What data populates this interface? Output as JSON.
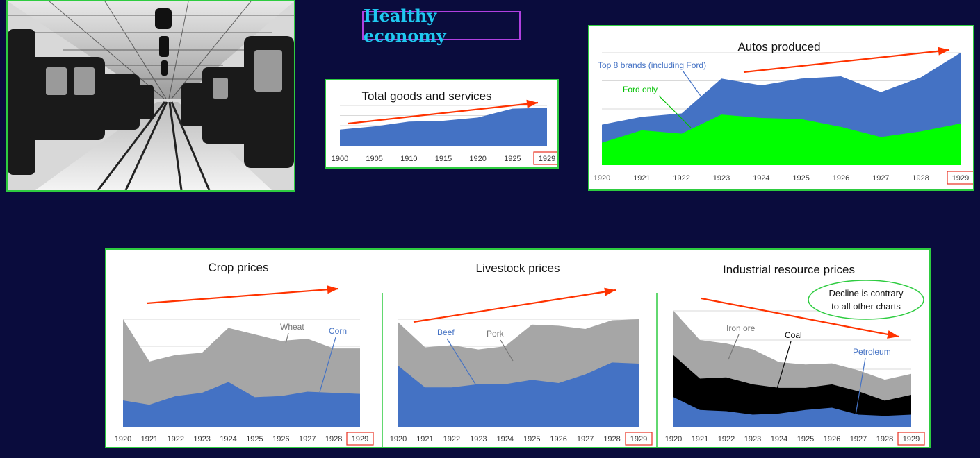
{
  "page": {
    "title": "Healthy economy",
    "note_line1": "Decline is contrary",
    "note_line2": "to all other charts"
  },
  "colors": {
    "background": "#0a0c3d",
    "panel_border": "#2ecc40",
    "title_border": "#b040e0",
    "title_text": "#1fc8f0",
    "blue": "#4472c4",
    "green": "#00ff00",
    "gray": "#a6a6a6",
    "black": "#000000",
    "trend_arrow": "#ff3300",
    "highlight_box": "#e83020"
  },
  "chart_data": [
    {
      "id": "goods",
      "type": "area",
      "title": "Total goods and services",
      "x": [
        "1900",
        "1905",
        "1910",
        "1915",
        "1920",
        "1925",
        "1929"
      ],
      "highlight": "1929",
      "ylim": [
        0,
        100
      ],
      "grid": true,
      "series": [
        {
          "values": [
            40,
            48,
            60,
            62,
            70,
            92,
            94
          ]
        }
      ],
      "trend": "up"
    },
    {
      "id": "autos",
      "type": "area",
      "title": "Autos produced",
      "x": [
        "1920",
        "1921",
        "1922",
        "1923",
        "1924",
        "1925",
        "1926",
        "1927",
        "1928",
        "1929"
      ],
      "highlight": "1929",
      "ylim": [
        0,
        100
      ],
      "grid": true,
      "series": [
        {
          "name": "Top 8 brands (including Ford)",
          "values": [
            36,
            43,
            46,
            77,
            71,
            77,
            79,
            65,
            78,
            100
          ]
        },
        {
          "name": "Ford only",
          "values": [
            20,
            31,
            28,
            45,
            42,
            41,
            34,
            25,
            30,
            37
          ]
        }
      ],
      "trend": "up"
    },
    {
      "id": "crops",
      "type": "area",
      "title": "Crop prices",
      "x": [
        "1920",
        "1921",
        "1922",
        "1923",
        "1924",
        "1925",
        "1926",
        "1927",
        "1928",
        "1929"
      ],
      "highlight": "1929",
      "ylim": [
        0,
        100
      ],
      "grid": true,
      "series": [
        {
          "name": "Wheat",
          "values": [
            100,
            61,
            67,
            69,
            92,
            86,
            80,
            82,
            73,
            73
          ]
        },
        {
          "name": "Corn",
          "values": [
            25,
            21,
            29,
            32,
            42,
            28,
            29,
            33,
            32,
            31
          ]
        }
      ],
      "trend": "up"
    },
    {
      "id": "livestock",
      "type": "area",
      "title": "Livestock prices",
      "x": [
        "1920",
        "1921",
        "1922",
        "1923",
        "1924",
        "1925",
        "1926",
        "1927",
        "1928",
        "1929"
      ],
      "highlight": "1929",
      "ylim": [
        0,
        100
      ],
      "grid": true,
      "series": [
        {
          "name": "Pork",
          "values": [
            97,
            74,
            76,
            72,
            75,
            95,
            94,
            91,
            99,
            100
          ]
        },
        {
          "name": "Beef",
          "values": [
            57,
            37,
            37,
            40,
            40,
            44,
            41,
            49,
            60,
            59
          ]
        }
      ],
      "trend": "up"
    },
    {
      "id": "industrial",
      "type": "area",
      "title": "Industrial resource prices",
      "x": [
        "1920",
        "1921",
        "1922",
        "1923",
        "1924",
        "1925",
        "1926",
        "1927",
        "1928",
        "1929"
      ],
      "highlight": "1929",
      "ylim": [
        0,
        100
      ],
      "grid": true,
      "series": [
        {
          "name": "Iron ore",
          "values": [
            100,
            75,
            72,
            67,
            56,
            54,
            55,
            49,
            41,
            46
          ]
        },
        {
          "name": "Coal",
          "values": [
            62,
            42,
            43,
            37,
            34,
            34,
            37,
            31,
            23,
            28
          ]
        },
        {
          "name": "Petroleum",
          "values": [
            26,
            15,
            14,
            11,
            12,
            15,
            17,
            11,
            10,
            11
          ]
        }
      ],
      "trend": "down"
    }
  ]
}
